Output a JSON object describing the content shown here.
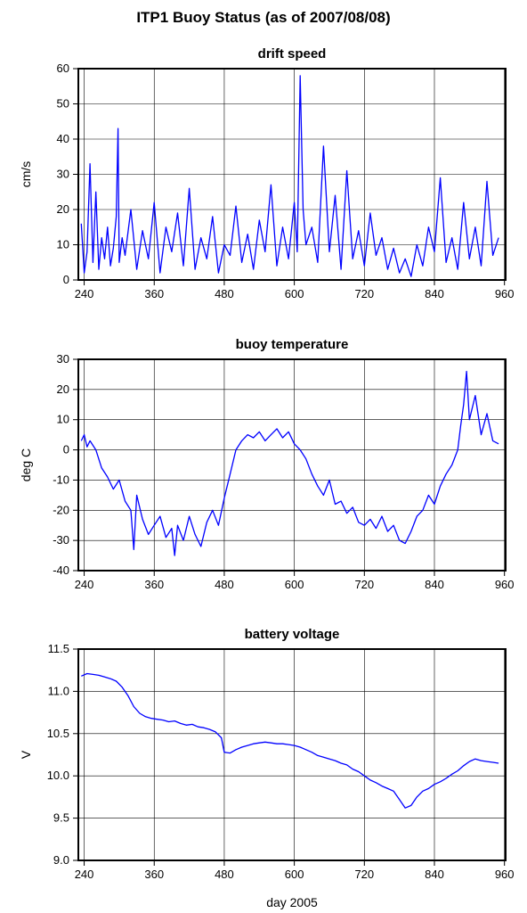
{
  "title": "ITP1 Buoy Status (as of 2007/08/08)",
  "xlabel": "day 2005",
  "chart_data": [
    {
      "type": "line",
      "title": "drift speed",
      "ylabel": "cm/s",
      "xlim": [
        230,
        962
      ],
      "ylim": [
        0,
        60
      ],
      "xticks": [
        240,
        360,
        480,
        600,
        720,
        840,
        960
      ],
      "yticks": [
        0,
        10,
        20,
        30,
        40,
        50,
        60
      ],
      "grid": true,
      "series_color": "#0000ff",
      "x": [
        235,
        240,
        245,
        250,
        255,
        260,
        265,
        270,
        275,
        280,
        285,
        290,
        295,
        298,
        300,
        305,
        310,
        320,
        330,
        340,
        350,
        360,
        370,
        380,
        390,
        400,
        410,
        420,
        430,
        440,
        450,
        460,
        470,
        480,
        490,
        500,
        510,
        520,
        530,
        540,
        550,
        560,
        570,
        580,
        590,
        600,
        605,
        610,
        615,
        620,
        630,
        640,
        650,
        660,
        670,
        680,
        690,
        700,
        710,
        720,
        730,
        740,
        750,
        760,
        770,
        780,
        790,
        800,
        810,
        820,
        830,
        840,
        850,
        860,
        870,
        880,
        890,
        900,
        910,
        920,
        930,
        940,
        950
      ],
      "y": [
        16,
        2,
        8,
        33,
        5,
        25,
        3,
        12,
        6,
        15,
        4,
        9,
        18,
        43,
        5,
        12,
        7,
        20,
        3,
        14,
        6,
        22,
        2,
        15,
        8,
        19,
        4,
        26,
        3,
        12,
        6,
        18,
        2,
        10,
        7,
        21,
        5,
        13,
        3,
        17,
        8,
        27,
        4,
        15,
        6,
        22,
        8,
        58,
        20,
        10,
        15,
        5,
        38,
        8,
        24,
        3,
        31,
        6,
        14,
        4,
        19,
        7,
        12,
        3,
        9,
        2,
        6,
        1,
        10,
        4,
        15,
        8,
        29,
        5,
        12,
        3,
        22,
        6,
        15,
        4,
        28,
        7,
        12
      ]
    },
    {
      "type": "line",
      "title": "buoy temperature",
      "ylabel": "deg C",
      "xlim": [
        230,
        962
      ],
      "ylim": [
        -40,
        30
      ],
      "xticks": [
        240,
        360,
        480,
        600,
        720,
        840,
        960
      ],
      "yticks": [
        -40,
        -30,
        -20,
        -10,
        0,
        10,
        20,
        30
      ],
      "grid": true,
      "series_color": "#0000ff",
      "x": [
        235,
        240,
        245,
        250,
        260,
        270,
        280,
        290,
        300,
        310,
        320,
        325,
        330,
        340,
        350,
        360,
        370,
        380,
        390,
        395,
        400,
        410,
        420,
        430,
        440,
        450,
        460,
        470,
        480,
        490,
        500,
        510,
        520,
        530,
        540,
        550,
        560,
        570,
        580,
        590,
        600,
        610,
        620,
        630,
        640,
        650,
        660,
        670,
        680,
        690,
        700,
        710,
        720,
        730,
        740,
        750,
        760,
        770,
        780,
        790,
        800,
        810,
        820,
        830,
        840,
        850,
        860,
        870,
        880,
        885,
        890,
        895,
        900,
        910,
        920,
        930,
        940,
        950
      ],
      "y": [
        3,
        5,
        1,
        3,
        0,
        -6,
        -9,
        -13,
        -10,
        -17,
        -20,
        -33,
        -15,
        -23,
        -28,
        -25,
        -22,
        -29,
        -26,
        -35,
        -25,
        -30,
        -22,
        -28,
        -32,
        -24,
        -20,
        -25,
        -16,
        -8,
        0,
        3,
        5,
        4,
        6,
        3,
        5,
        7,
        4,
        6,
        2,
        0,
        -3,
        -8,
        -12,
        -15,
        -10,
        -18,
        -17,
        -21,
        -19,
        -24,
        -25,
        -23,
        -26,
        -22,
        -27,
        -25,
        -30,
        -31,
        -27,
        -22,
        -20,
        -15,
        -18,
        -12,
        -8,
        -5,
        0,
        8,
        15,
        26,
        10,
        18,
        5,
        12,
        3,
        2
      ]
    },
    {
      "type": "line",
      "title": "battery voltage",
      "ylabel": "V",
      "xlim": [
        230,
        962
      ],
      "ylim": [
        9.0,
        11.5
      ],
      "xticks": [
        240,
        360,
        480,
        600,
        720,
        840,
        960
      ],
      "yticks": [
        9.0,
        9.5,
        10.0,
        10.5,
        11.0,
        11.5
      ],
      "grid": true,
      "series_color": "#0000ff",
      "x": [
        235,
        245,
        255,
        265,
        275,
        285,
        295,
        305,
        315,
        325,
        335,
        345,
        355,
        365,
        375,
        385,
        395,
        405,
        415,
        425,
        435,
        445,
        455,
        465,
        475,
        480,
        490,
        500,
        510,
        520,
        530,
        540,
        550,
        560,
        570,
        580,
        590,
        600,
        610,
        620,
        630,
        640,
        650,
        660,
        670,
        680,
        690,
        700,
        710,
        720,
        730,
        740,
        750,
        760,
        770,
        780,
        790,
        800,
        810,
        820,
        830,
        840,
        850,
        860,
        870,
        880,
        890,
        900,
        910,
        920,
        930,
        940,
        950
      ],
      "y": [
        11.18,
        11.21,
        11.2,
        11.19,
        11.17,
        11.15,
        11.12,
        11.05,
        10.95,
        10.82,
        10.74,
        10.7,
        10.68,
        10.67,
        10.66,
        10.64,
        10.65,
        10.62,
        10.6,
        10.61,
        10.58,
        10.57,
        10.55,
        10.52,
        10.45,
        10.28,
        10.27,
        10.31,
        10.34,
        10.36,
        10.38,
        10.39,
        10.4,
        10.39,
        10.38,
        10.38,
        10.37,
        10.36,
        10.34,
        10.31,
        10.28,
        10.24,
        10.22,
        10.2,
        10.18,
        10.15,
        10.13,
        10.08,
        10.05,
        10.0,
        9.95,
        9.92,
        9.88,
        9.85,
        9.82,
        9.72,
        9.62,
        9.65,
        9.75,
        9.82,
        9.85,
        9.9,
        9.93,
        9.97,
        10.02,
        10.06,
        10.12,
        10.17,
        10.2,
        10.18,
        10.17,
        10.16,
        10.15
      ]
    }
  ]
}
